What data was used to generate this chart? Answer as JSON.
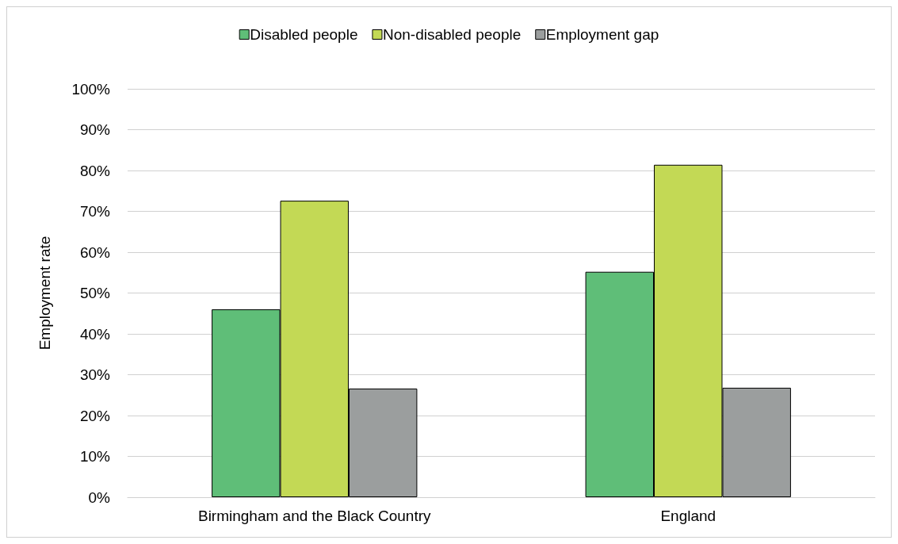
{
  "chart_data": {
    "type": "bar",
    "ylabel": "Employment rate",
    "categories": [
      "Birmingham and the Black Country",
      "England"
    ],
    "series": [
      {
        "name": "Disabled people",
        "color": "#5fbe78",
        "values": [
          46.0,
          55.2
        ]
      },
      {
        "name": "Non-disabled people",
        "color": "#c3d955",
        "values": [
          72.6,
          81.4
        ]
      },
      {
        "name": "Employment gap",
        "color": "#9b9e9e",
        "values": [
          26.6,
          26.8
        ]
      }
    ],
    "ylim": [
      0,
      100
    ],
    "yticks": [
      {
        "value": 0,
        "label": "0%"
      },
      {
        "value": 10,
        "label": "10%"
      },
      {
        "value": 20,
        "label": "20%"
      },
      {
        "value": 30,
        "label": "30%"
      },
      {
        "value": 40,
        "label": "40%"
      },
      {
        "value": 50,
        "label": "50%"
      },
      {
        "value": 60,
        "label": "60%"
      },
      {
        "value": 70,
        "label": "70%"
      },
      {
        "value": 80,
        "label": "80%"
      },
      {
        "value": 90,
        "label": "90%"
      },
      {
        "value": 100,
        "label": "100%"
      }
    ],
    "grid": "y",
    "legend": "top"
  }
}
